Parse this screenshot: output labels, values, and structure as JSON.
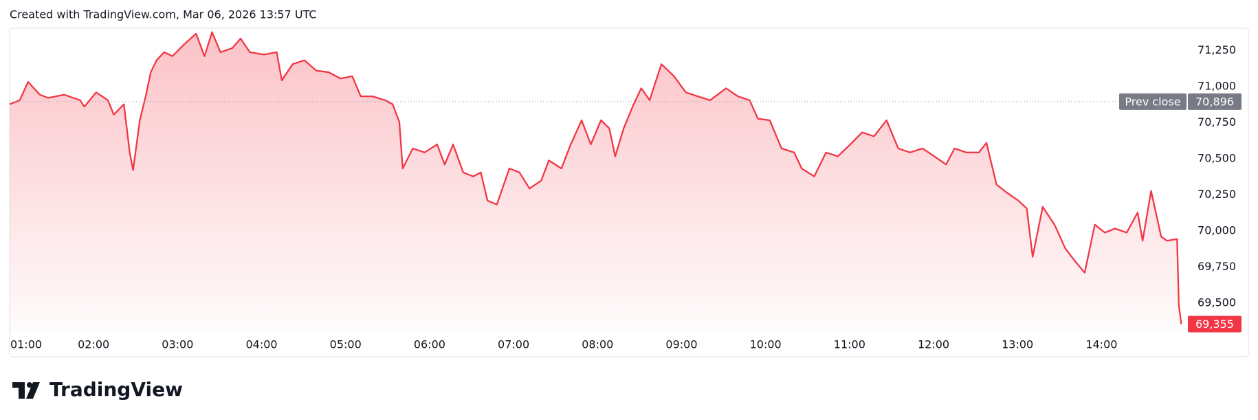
{
  "chart_data": {
    "type": "line",
    "title": "Created with TradingView.com, Mar 06, 2026 13:57 UTC",
    "watermark": "TradingView",
    "xlim": [
      1,
      15.02
    ],
    "ylim": [
      69310,
      71405
    ],
    "xticks": [
      {
        "value": 1,
        "label": "01:00"
      },
      {
        "value": 2,
        "label": "02:00"
      },
      {
        "value": 3,
        "label": "03:00"
      },
      {
        "value": 4,
        "label": "04:00"
      },
      {
        "value": 5,
        "label": "05:00"
      },
      {
        "value": 6,
        "label": "06:00"
      },
      {
        "value": 7,
        "label": "07:00"
      },
      {
        "value": 8,
        "label": "08:00"
      },
      {
        "value": 9,
        "label": "09:00"
      },
      {
        "value": 10,
        "label": "10:00"
      },
      {
        "value": 11,
        "label": "11:00"
      },
      {
        "value": 12,
        "label": "12:00"
      },
      {
        "value": 13,
        "label": "13:00"
      },
      {
        "value": 14,
        "label": "14:00"
      }
    ],
    "yticks": [
      {
        "value": 69500,
        "label": "69,500"
      },
      {
        "value": 69750,
        "label": "69,750"
      },
      {
        "value": 70000,
        "label": "70,000"
      },
      {
        "value": 70250,
        "label": "70,250"
      },
      {
        "value": 70500,
        "label": "70,500"
      },
      {
        "value": 70750,
        "label": "70,750"
      },
      {
        "value": 71000,
        "label": "71,000"
      },
      {
        "value": 71250,
        "label": "71,250"
      }
    ],
    "prev_close": {
      "name": "Prev close",
      "value": 70896,
      "label": "70,896"
    },
    "last_price": {
      "value": 69355,
      "label": "69,355"
    },
    "x": [
      1.0,
      1.12,
      1.22,
      1.36,
      1.46,
      1.65,
      1.84,
      1.89,
      2.03,
      2.17,
      2.24,
      2.36,
      2.43,
      2.47,
      2.55,
      2.62,
      2.68,
      2.75,
      2.84,
      2.94,
      3.08,
      3.22,
      3.32,
      3.41,
      3.51,
      3.65,
      3.75,
      3.86,
      4.03,
      4.18,
      4.24,
      4.37,
      4.51,
      4.65,
      4.8,
      4.94,
      5.08,
      5.18,
      5.32,
      5.47,
      5.56,
      5.64,
      5.68,
      5.8,
      5.94,
      6.09,
      6.18,
      6.28,
      6.4,
      6.52,
      6.61,
      6.69,
      6.8,
      6.95,
      7.07,
      7.19,
      7.33,
      7.42,
      7.57,
      7.68,
      7.81,
      7.92,
      8.04,
      8.14,
      8.21,
      8.31,
      8.43,
      8.52,
      8.62,
      8.76,
      8.91,
      9.05,
      9.19,
      9.34,
      9.53,
      9.67,
      9.81,
      9.91,
      10.05,
      10.19,
      10.34,
      10.43,
      10.58,
      10.72,
      10.86,
      11.01,
      11.15,
      11.29,
      11.44,
      11.58,
      11.72,
      11.87,
      12.01,
      12.15,
      12.25,
      12.39,
      12.54,
      12.63,
      12.75,
      12.87,
      13.01,
      13.11,
      13.18,
      13.3,
      13.44,
      13.57,
      13.68,
      13.8,
      13.92,
      14.04,
      14.16,
      14.3,
      14.43,
      14.49,
      14.59,
      14.71,
      14.78,
      14.9,
      14.92,
      14.95
    ],
    "series": [
      {
        "name": "Price",
        "color": "#f23645",
        "values": [
          70878,
          70906,
          71033,
          70944,
          70922,
          70944,
          70906,
          70861,
          70961,
          70906,
          70806,
          70878,
          70544,
          70422,
          70767,
          70933,
          71100,
          71183,
          71239,
          71211,
          71294,
          71367,
          71211,
          71378,
          71239,
          71267,
          71333,
          71239,
          71222,
          71239,
          71044,
          71156,
          71183,
          71111,
          71100,
          71056,
          71072,
          70933,
          70933,
          70906,
          70878,
          70756,
          70433,
          70572,
          70544,
          70600,
          70461,
          70600,
          70406,
          70378,
          70406,
          70211,
          70183,
          70433,
          70406,
          70294,
          70350,
          70489,
          70433,
          70600,
          70767,
          70600,
          70767,
          70711,
          70517,
          70711,
          70878,
          70989,
          70906,
          71156,
          71072,
          70961,
          70933,
          70906,
          70989,
          70933,
          70906,
          70778,
          70767,
          70572,
          70544,
          70433,
          70378,
          70544,
          70517,
          70600,
          70683,
          70656,
          70767,
          70572,
          70544,
          70572,
          70517,
          70461,
          70572,
          70544,
          70544,
          70611,
          70322,
          70267,
          70211,
          70156,
          69822,
          70167,
          70044,
          69878,
          69794,
          69711,
          70044,
          69989,
          70017,
          69989,
          70128,
          69933,
          70278,
          69961,
          69933,
          69944,
          69489,
          69355
        ]
      }
    ]
  }
}
